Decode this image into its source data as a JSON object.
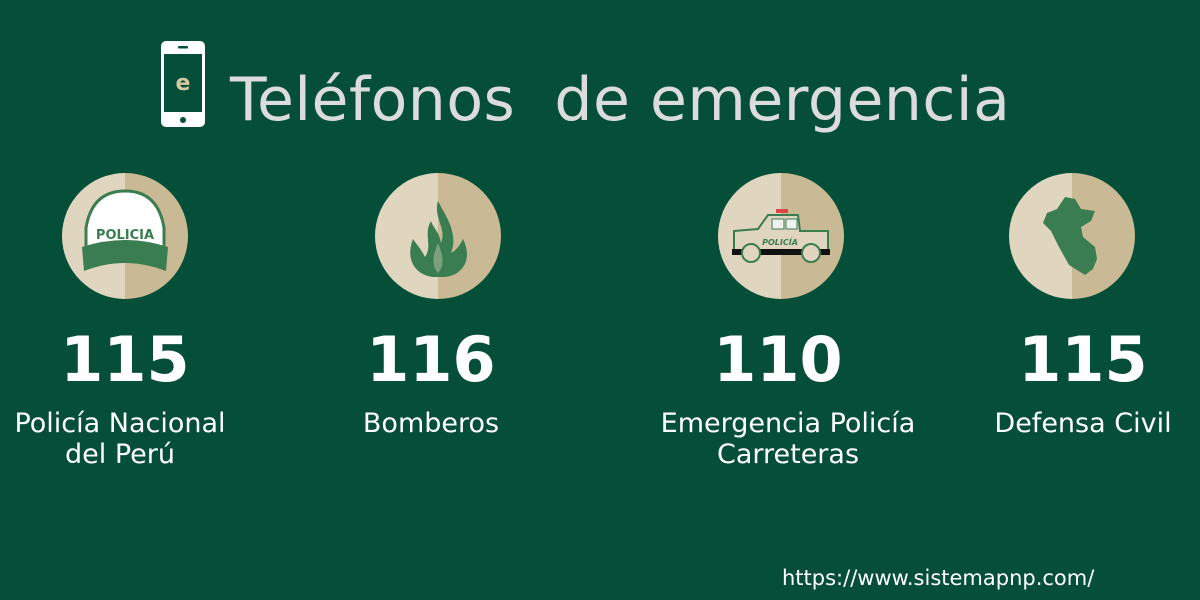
{
  "header": {
    "title": "Teléfonos  de emergencia",
    "phone_icon_letter": "e",
    "icon": "smartphone-icon"
  },
  "colors": {
    "background": "#054f38",
    "circle_light": "#e0d5bf",
    "circle_dark": "#cab995",
    "icon_green": "#3a7d50",
    "accent_letter": "#d9c9a3"
  },
  "contacts": [
    {
      "number": "115",
      "label_line1": "Policía Nacional",
      "label_line2": "del Perú",
      "icon": "police-cap-icon",
      "icon_text": "POLICIA"
    },
    {
      "number": "116",
      "label_line1": "Bomberos",
      "label_line2": "",
      "icon": "fire-icon"
    },
    {
      "number": "110",
      "label_line1": "Emergencia Policía",
      "label_line2": "Carreteras",
      "icon": "police-truck-icon",
      "icon_text": "POLICÍA"
    },
    {
      "number": "115",
      "label_line1": "Defensa Civil",
      "label_line2": "",
      "icon": "peru-map-icon"
    }
  ],
  "footer": {
    "url": "https://www.sistemapnp.com/"
  }
}
